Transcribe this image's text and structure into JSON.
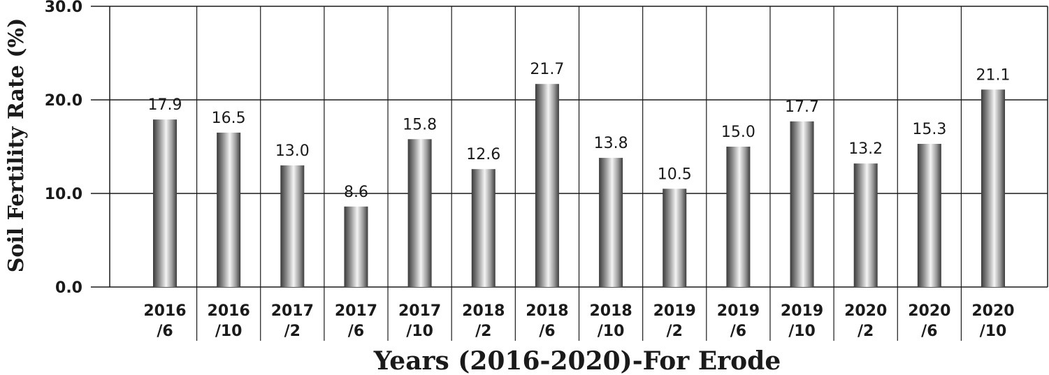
{
  "chart_data": {
    "type": "bar",
    "categories": [
      [
        "2016",
        "/6"
      ],
      [
        "2016",
        "/10"
      ],
      [
        "2017",
        "/2"
      ],
      [
        "2017",
        "/6"
      ],
      [
        "2017",
        "/10"
      ],
      [
        "2018",
        "/2"
      ],
      [
        "2018",
        "/6"
      ],
      [
        "2018",
        "/10"
      ],
      [
        "2019",
        "/2"
      ],
      [
        "2019",
        "/6"
      ],
      [
        "2019",
        "/10"
      ],
      [
        "2020",
        "/2"
      ],
      [
        "2020",
        "/6"
      ],
      [
        "2020",
        "/10"
      ]
    ],
    "values": [
      17.9,
      16.5,
      13.0,
      8.6,
      15.8,
      12.6,
      21.7,
      13.8,
      10.5,
      15.0,
      17.7,
      13.2,
      15.3,
      21.1
    ],
    "value_labels": [
      "17.9",
      "16.5",
      "13.0",
      "8.6",
      "15.8",
      "12.6",
      "21.7",
      "13.8",
      "10.5",
      "15.0",
      "17.7",
      "13.2",
      "15.3",
      "21.1"
    ],
    "xlabel": "Years (2016-2020)-For Erode",
    "ylabel": "Soil Fertility Rate (%)",
    "ylim": [
      0,
      30
    ],
    "yticks": [
      "0.0",
      "10.0",
      "20.0",
      "30.0"
    ],
    "ytick_values": [
      0,
      10,
      20,
      30
    ],
    "grid": true,
    "bar_style": "metallic-gray-gradient"
  }
}
